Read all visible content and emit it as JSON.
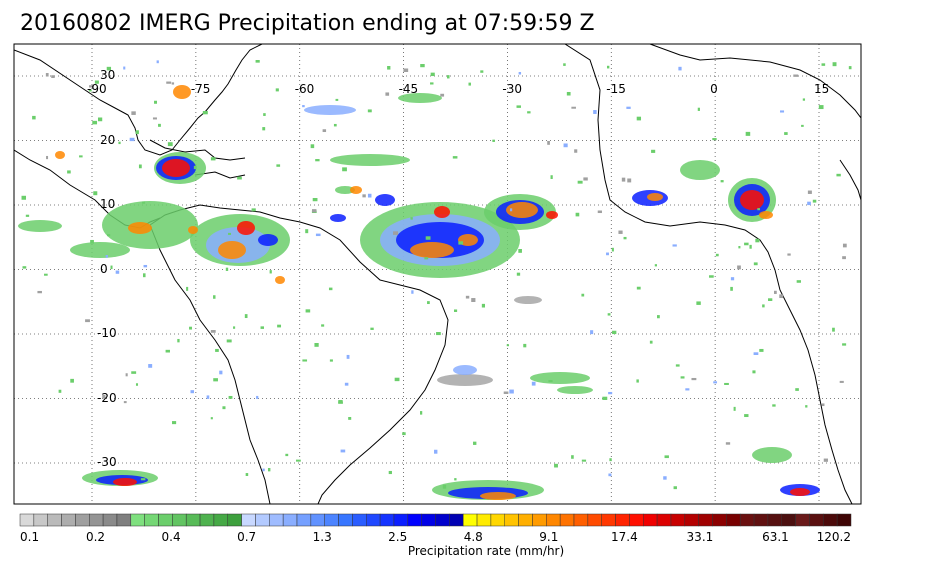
{
  "title": "20160802 IMERG Precipitation ending at 07:59:59 Z",
  "map": {
    "lon_labels": [
      "-90",
      "-75",
      "-60",
      "-45",
      "-30",
      "-15",
      "0",
      "15"
    ],
    "lon_values": [
      -90,
      -75,
      -60,
      -45,
      -30,
      -15,
      0,
      15
    ],
    "lat_labels": [
      "30",
      "20",
      "10",
      "0",
      "-10",
      "-20",
      "-30"
    ],
    "lat_values": [
      30,
      20,
      10,
      0,
      -10,
      -20,
      -30
    ],
    "gridlines": "dotted"
  },
  "colorbar": {
    "title": "Precipitation rate (mm/hr)",
    "tick_labels": [
      "0.1",
      "0.2",
      "0.4",
      "0.7",
      "1.3",
      "2.5",
      "4.8",
      "9.1",
      "17.4",
      "33.1",
      "63.1",
      "120.2"
    ],
    "colors": [
      "#d9d9d9",
      "#c8c8c8",
      "#bababa",
      "#adadad",
      "#9f9f9f",
      "#949494",
      "#8a8a8a",
      "#7f7f7f",
      "#7fe07f",
      "#75d775",
      "#6bce6b",
      "#62c462",
      "#58bb58",
      "#4fb24f",
      "#46a946",
      "#3da03d",
      "#c8d8ff",
      "#b3caff",
      "#9fbcff",
      "#8aaeff",
      "#75a0ff",
      "#6192ff",
      "#4c84ff",
      "#3876ff",
      "#2a5dff",
      "#2048ff",
      "#1533ff",
      "#0b1eff",
      "#0000ff",
      "#0000e6",
      "#0000cc",
      "#0000b3",
      "#ffff00",
      "#ffeb00",
      "#ffd700",
      "#ffc300",
      "#ffaf00",
      "#ff9b00",
      "#ff8700",
      "#ff7300",
      "#ff5f00",
      "#ff4b00",
      "#ff3700",
      "#ff2300",
      "#ff0f00",
      "#f00000",
      "#dc0000",
      "#c80000",
      "#b40000",
      "#a00000",
      "#8c0000",
      "#780000",
      "#6a1010",
      "#601010",
      "#561010",
      "#4c1010",
      "#6a1a1a",
      "#5a1010",
      "#4c0a0a",
      "#3e0505"
    ]
  },
  "legend_colors": {
    "gray": "#a0a0a0",
    "green": "#6bce6b",
    "light_blue": "#8aaeff",
    "blue": "#0b1eff",
    "yellow": "#ffd700",
    "orange": "#ff8700",
    "red": "#ff0f00",
    "dark_red": "#8c0000"
  }
}
